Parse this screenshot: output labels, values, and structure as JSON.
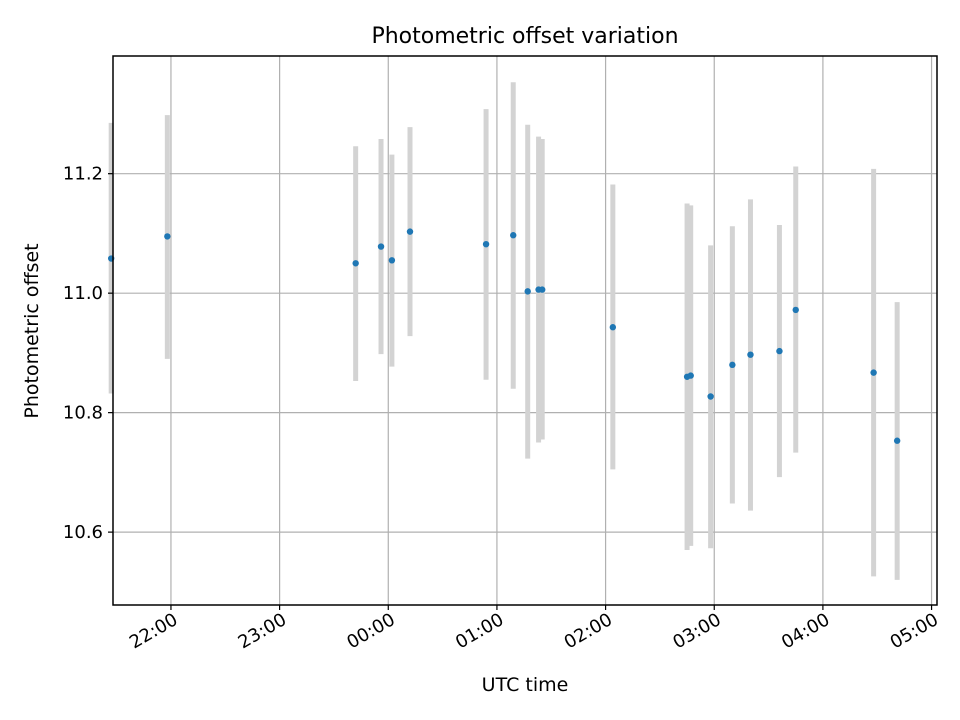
{
  "chart_data": {
    "type": "scatter",
    "title": "Photometric offset variation",
    "xlabel": "UTC time",
    "ylabel": "Photometric offset",
    "x_tick_labels": [
      "22:00",
      "23:00",
      "00:00",
      "01:00",
      "02:00",
      "03:00",
      "04:00",
      "05:00"
    ],
    "y_ticks": [
      10.6,
      10.8,
      11.0,
      11.2
    ],
    "y_tick_labels": [
      "10.6",
      "10.8",
      "11.0",
      "11.2"
    ],
    "xlim": [
      "21:28",
      "05:03"
    ],
    "ylim": [
      10.478,
      11.397
    ],
    "grid": true,
    "colors": {
      "point": "#1f77b4",
      "errorbar": "#d3d3d3"
    },
    "points": [
      {
        "x": "21:27",
        "y": 11.058,
        "lo": 10.832,
        "hi": 11.285
      },
      {
        "x": "21:58",
        "y": 11.095,
        "lo": 10.89,
        "hi": 11.298
      },
      {
        "x": "23:42",
        "y": 11.05,
        "lo": 10.853,
        "hi": 11.246
      },
      {
        "x": "23:56",
        "y": 11.078,
        "lo": 10.898,
        "hi": 11.258
      },
      {
        "x": "00:02",
        "y": 11.055,
        "lo": 10.877,
        "hi": 11.232
      },
      {
        "x": "00:12",
        "y": 11.103,
        "lo": 10.928,
        "hi": 11.278
      },
      {
        "x": "00:54",
        "y": 11.082,
        "lo": 10.855,
        "hi": 11.308
      },
      {
        "x": "01:09",
        "y": 11.097,
        "lo": 10.84,
        "hi": 11.353
      },
      {
        "x": "01:17",
        "y": 11.003,
        "lo": 10.723,
        "hi": 11.282
      },
      {
        "x": "01:23",
        "y": 11.006,
        "lo": 10.75,
        "hi": 11.262
      },
      {
        "x": "01:25",
        "y": 11.006,
        "lo": 10.755,
        "hi": 11.258
      },
      {
        "x": "02:04",
        "y": 10.943,
        "lo": 10.705,
        "hi": 11.182
      },
      {
        "x": "02:45",
        "y": 10.86,
        "lo": 10.57,
        "hi": 11.15
      },
      {
        "x": "02:47",
        "y": 10.862,
        "lo": 10.577,
        "hi": 11.147
      },
      {
        "x": "02:58",
        "y": 10.827,
        "lo": 10.573,
        "hi": 11.08
      },
      {
        "x": "03:10",
        "y": 10.88,
        "lo": 10.648,
        "hi": 11.112
      },
      {
        "x": "03:20",
        "y": 10.897,
        "lo": 10.636,
        "hi": 11.157
      },
      {
        "x": "03:36",
        "y": 10.903,
        "lo": 10.692,
        "hi": 11.114
      },
      {
        "x": "03:45",
        "y": 10.972,
        "lo": 10.733,
        "hi": 11.212
      },
      {
        "x": "04:28",
        "y": 10.867,
        "lo": 10.526,
        "hi": 11.208
      },
      {
        "x": "04:41",
        "y": 10.753,
        "lo": 10.52,
        "hi": 10.985
      }
    ]
  }
}
